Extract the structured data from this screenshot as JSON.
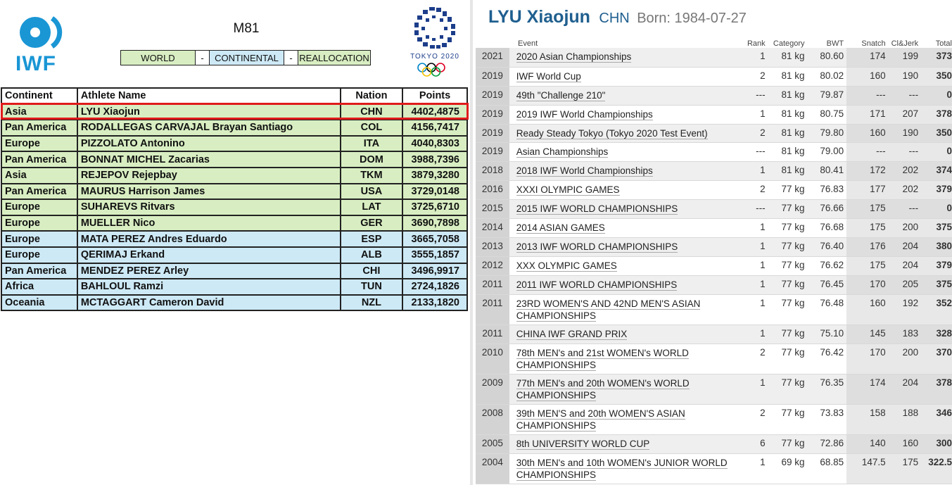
{
  "left": {
    "brand": "IWF",
    "category": "M81",
    "legend": [
      "WORLD",
      "-",
      "CONTINENTAL",
      "-",
      "REALLOCATION"
    ],
    "tokyo_label": "TOKYO 2020",
    "colors": {
      "world": "#d8eec2",
      "continental": "#cde9f6",
      "highlight": "#e01b1b",
      "iwf_blue": "#1a96d5"
    },
    "headers": [
      "Continent",
      "Athlete Name",
      "Nation",
      "Points"
    ],
    "rows": [
      {
        "continent": "Asia",
        "athlete": "LYU Xiaojun",
        "nation": "CHN",
        "points": "4402,4875",
        "type": "world"
      },
      {
        "continent": "Pan America",
        "athlete": "RODALLEGAS CARVAJAL Brayan Santiago",
        "nation": "COL",
        "points": "4156,7417",
        "type": "world"
      },
      {
        "continent": "Europe",
        "athlete": "PIZZOLATO Antonino",
        "nation": "ITA",
        "points": "4040,8303",
        "type": "world"
      },
      {
        "continent": "Pan America",
        "athlete": "BONNAT MICHEL Zacarias",
        "nation": "DOM",
        "points": "3988,7396",
        "type": "world"
      },
      {
        "continent": "Asia",
        "athlete": "REJEPOV Rejepbay",
        "nation": "TKM",
        "points": "3879,3280",
        "type": "world"
      },
      {
        "continent": "Pan America",
        "athlete": "MAURUS Harrison James",
        "nation": "USA",
        "points": "3729,0148",
        "type": "world"
      },
      {
        "continent": "Europe",
        "athlete": "SUHAREVS Ritvars",
        "nation": "LAT",
        "points": "3725,6710",
        "type": "world"
      },
      {
        "continent": "Europe",
        "athlete": "MUELLER Nico",
        "nation": "GER",
        "points": "3690,7898",
        "type": "world"
      },
      {
        "continent": "Europe",
        "athlete": "MATA PEREZ Andres Eduardo",
        "nation": "ESP",
        "points": "3665,7058",
        "type": "cont"
      },
      {
        "continent": "Europe",
        "athlete": "QERIMAJ Erkand",
        "nation": "ALB",
        "points": "3555,1857",
        "type": "cont"
      },
      {
        "continent": "Pan America",
        "athlete": "MENDEZ PEREZ Arley",
        "nation": "CHI",
        "points": "3496,9917",
        "type": "cont"
      },
      {
        "continent": "Africa",
        "athlete": "BAHLOUL Ramzi",
        "nation": "TUN",
        "points": "2724,1826",
        "type": "cont"
      },
      {
        "continent": "Oceania",
        "athlete": "MCTAGGART Cameron David",
        "nation": "NZL",
        "points": "2133,1820",
        "type": "cont"
      }
    ]
  },
  "right": {
    "name": "LYU Xiaojun",
    "nation": "CHN",
    "born": "Born: 1984-07-27",
    "headers": [
      "Event",
      "Rank",
      "Category",
      "BWT",
      "Snatch",
      "Cl&Jerk",
      "Total"
    ],
    "results": [
      {
        "year": "2021",
        "event": "2020 Asian Championships",
        "rank": "1",
        "cat": "81 kg",
        "bwt": "80.60",
        "snatch": "174",
        "cj": "199",
        "total": "373"
      },
      {
        "year": "2019",
        "event": "IWF World Cup",
        "rank": "2",
        "cat": "81 kg",
        "bwt": "80.02",
        "snatch": "160",
        "cj": "190",
        "total": "350"
      },
      {
        "year": "2019",
        "event": "49th \"Challenge 210\"",
        "rank": "---",
        "cat": "81 kg",
        "bwt": "79.87",
        "snatch": "---",
        "cj": "---",
        "total": "0"
      },
      {
        "year": "2019",
        "event": "2019 IWF World Championships",
        "rank": "1",
        "cat": "81 kg",
        "bwt": "80.75",
        "snatch": "171",
        "cj": "207",
        "total": "378"
      },
      {
        "year": "2019",
        "event": "Ready Steady Tokyo (Tokyo 2020 Test Event)",
        "rank": "2",
        "cat": "81 kg",
        "bwt": "79.80",
        "snatch": "160",
        "cj": "190",
        "total": "350"
      },
      {
        "year": "2019",
        "event": "Asian Championships",
        "rank": "---",
        "cat": "81 kg",
        "bwt": "79.00",
        "snatch": "---",
        "cj": "---",
        "total": "0"
      },
      {
        "year": "2018",
        "event": "2018 IWF World Championships",
        "rank": "1",
        "cat": "81 kg",
        "bwt": "80.41",
        "snatch": "172",
        "cj": "202",
        "total": "374"
      },
      {
        "year": "2016",
        "event": "XXXI OLYMPIC GAMES",
        "rank": "2",
        "cat": "77 kg",
        "bwt": "76.83",
        "snatch": "177",
        "cj": "202",
        "total": "379"
      },
      {
        "year": "2015",
        "event": "2015 IWF WORLD CHAMPIONSHIPS",
        "rank": "---",
        "cat": "77 kg",
        "bwt": "76.66",
        "snatch": "175",
        "cj": "---",
        "total": "0"
      },
      {
        "year": "2014",
        "event": "2014 ASIAN GAMES",
        "rank": "1",
        "cat": "77 kg",
        "bwt": "76.68",
        "snatch": "175",
        "cj": "200",
        "total": "375"
      },
      {
        "year": "2013",
        "event": "2013 IWF WORLD CHAMPIONSHIPS",
        "rank": "1",
        "cat": "77 kg",
        "bwt": "76.40",
        "snatch": "176",
        "cj": "204",
        "total": "380"
      },
      {
        "year": "2012",
        "event": "XXX OLYMPIC GAMES",
        "rank": "1",
        "cat": "77 kg",
        "bwt": "76.62",
        "snatch": "175",
        "cj": "204",
        "total": "379"
      },
      {
        "year": "2011",
        "event": "2011 IWF WORLD CHAMPIONSHIPS",
        "rank": "1",
        "cat": "77 kg",
        "bwt": "76.45",
        "snatch": "170",
        "cj": "205",
        "total": "375"
      },
      {
        "year": "2011",
        "event": "23RD WOMEN'S AND 42ND MEN'S ASIAN CHAMPIONSHIPS",
        "rank": "1",
        "cat": "77 kg",
        "bwt": "76.48",
        "snatch": "160",
        "cj": "192",
        "total": "352"
      },
      {
        "year": "2011",
        "event": "CHINA IWF GRAND PRIX",
        "rank": "1",
        "cat": "77 kg",
        "bwt": "75.10",
        "snatch": "145",
        "cj": "183",
        "total": "328"
      },
      {
        "year": "2010",
        "event": "78th MEN's and 21st WOMEN's WORLD CHAMPIONSHIPS",
        "rank": "2",
        "cat": "77 kg",
        "bwt": "76.42",
        "snatch": "170",
        "cj": "200",
        "total": "370"
      },
      {
        "year": "2009",
        "event": "77th MEN's and 20th WOMEN's WORLD CHAMPIONSHIPS",
        "rank": "1",
        "cat": "77 kg",
        "bwt": "76.35",
        "snatch": "174",
        "cj": "204",
        "total": "378"
      },
      {
        "year": "2008",
        "event": "39th MEN'S and 20th WOMEN'S ASIAN CHAMPIONSHIPS",
        "rank": "2",
        "cat": "77 kg",
        "bwt": "73.83",
        "snatch": "158",
        "cj": "188",
        "total": "346"
      },
      {
        "year": "2005",
        "event": "8th UNIVERSITY WORLD CUP",
        "rank": "6",
        "cat": "77 kg",
        "bwt": "72.86",
        "snatch": "140",
        "cj": "160",
        "total": "300"
      },
      {
        "year": "2004",
        "event": "30th MEN's and 10th WOMEN's JUNIOR WORLD CHAMPIONSHIPS",
        "rank": "1",
        "cat": "69 kg",
        "bwt": "68.85",
        "snatch": "147.5",
        "cj": "175",
        "total": "322.5"
      }
    ]
  }
}
